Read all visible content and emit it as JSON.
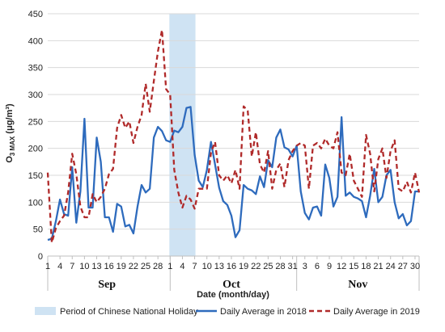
{
  "chart_data": {
    "type": "line",
    "ylabel_main": "O",
    "ylabel_sub": "3 MAX",
    "ylabel_unit": " (μg/m³)",
    "xlabel": "Date (month/day)",
    "ylim": [
      0,
      450
    ],
    "yticks": [
      "0",
      "50",
      "100",
      "150",
      "200",
      "250",
      "300",
      "350",
      "400",
      "450"
    ],
    "x_tick_labels": [
      "1",
      "4",
      "7",
      "10",
      "13",
      "16",
      "19",
      "22",
      "25",
      "28",
      "1",
      "4",
      "7",
      "10",
      "13",
      "16",
      "19",
      "22",
      "25",
      "28",
      "31",
      "3",
      "6",
      "9",
      "12",
      "15",
      "18",
      "21",
      "24",
      "27",
      "30"
    ],
    "months": [
      "Sep",
      "Oct",
      "Nov"
    ],
    "holiday": {
      "label": "Period of Chinese National Holiday",
      "start": "Oct 1",
      "end": "Oct 7",
      "color": "#cfe3f3"
    },
    "series": [
      {
        "name": "Daily Average in 2018",
        "style": "solid",
        "color": "#2e6bbd",
        "values": [
          30,
          32,
          65,
          105,
          78,
          75,
          165,
          62,
          120,
          255,
          90,
          90,
          220,
          175,
          72,
          72,
          45,
          97,
          92,
          55,
          58,
          42,
          92,
          132,
          118,
          125,
          220,
          240,
          232,
          215,
          212,
          233,
          230,
          240,
          275,
          277,
          188,
          140,
          128,
          160,
          212,
          170,
          127,
          102,
          95,
          75,
          35,
          48,
          132,
          125,
          122,
          115,
          148,
          128,
          178,
          165,
          220,
          235,
          202,
          198,
          185,
          205,
          120,
          80,
          68,
          90,
          92,
          75,
          170,
          145,
          92,
          110,
          258,
          112,
          118,
          110,
          107,
          102,
          72,
          112,
          162,
          100,
          110,
          150,
          160,
          100,
          70,
          78,
          57,
          65,
          120,
          120
        ]
      },
      {
        "name": "Daily Average in 2019",
        "style": "dashed",
        "color": "#b02a2a",
        "values": [
          155,
          25,
          52,
          65,
          75,
          118,
          190,
          152,
          92,
          72,
          72,
          115,
          100,
          110,
          125,
          152,
          162,
          238,
          262,
          238,
          250,
          210,
          240,
          262,
          320,
          268,
          325,
          380,
          420,
          310,
          300,
          160,
          118,
          90,
          112,
          105,
          88,
          125,
          125,
          125,
          192,
          212,
          150,
          140,
          150,
          135,
          160,
          125,
          278,
          270,
          185,
          230,
          170,
          155,
          195,
          125,
          160,
          172,
          128,
          178,
          195,
          205,
          210,
          205,
          125,
          205,
          210,
          200,
          218,
          205,
          200,
          230,
          155,
          150,
          190,
          140,
          125,
          110,
          225,
          190,
          120,
          180,
          200,
          145,
          195,
          215,
          125,
          120,
          138,
          118,
          155,
          118
        ]
      }
    ]
  },
  "legend": {
    "holiday_label": "Period of Chinese National Holiday",
    "series_2018_label": "Daily Average in 2018",
    "series_2019_label": "Daily Average in 2019"
  }
}
